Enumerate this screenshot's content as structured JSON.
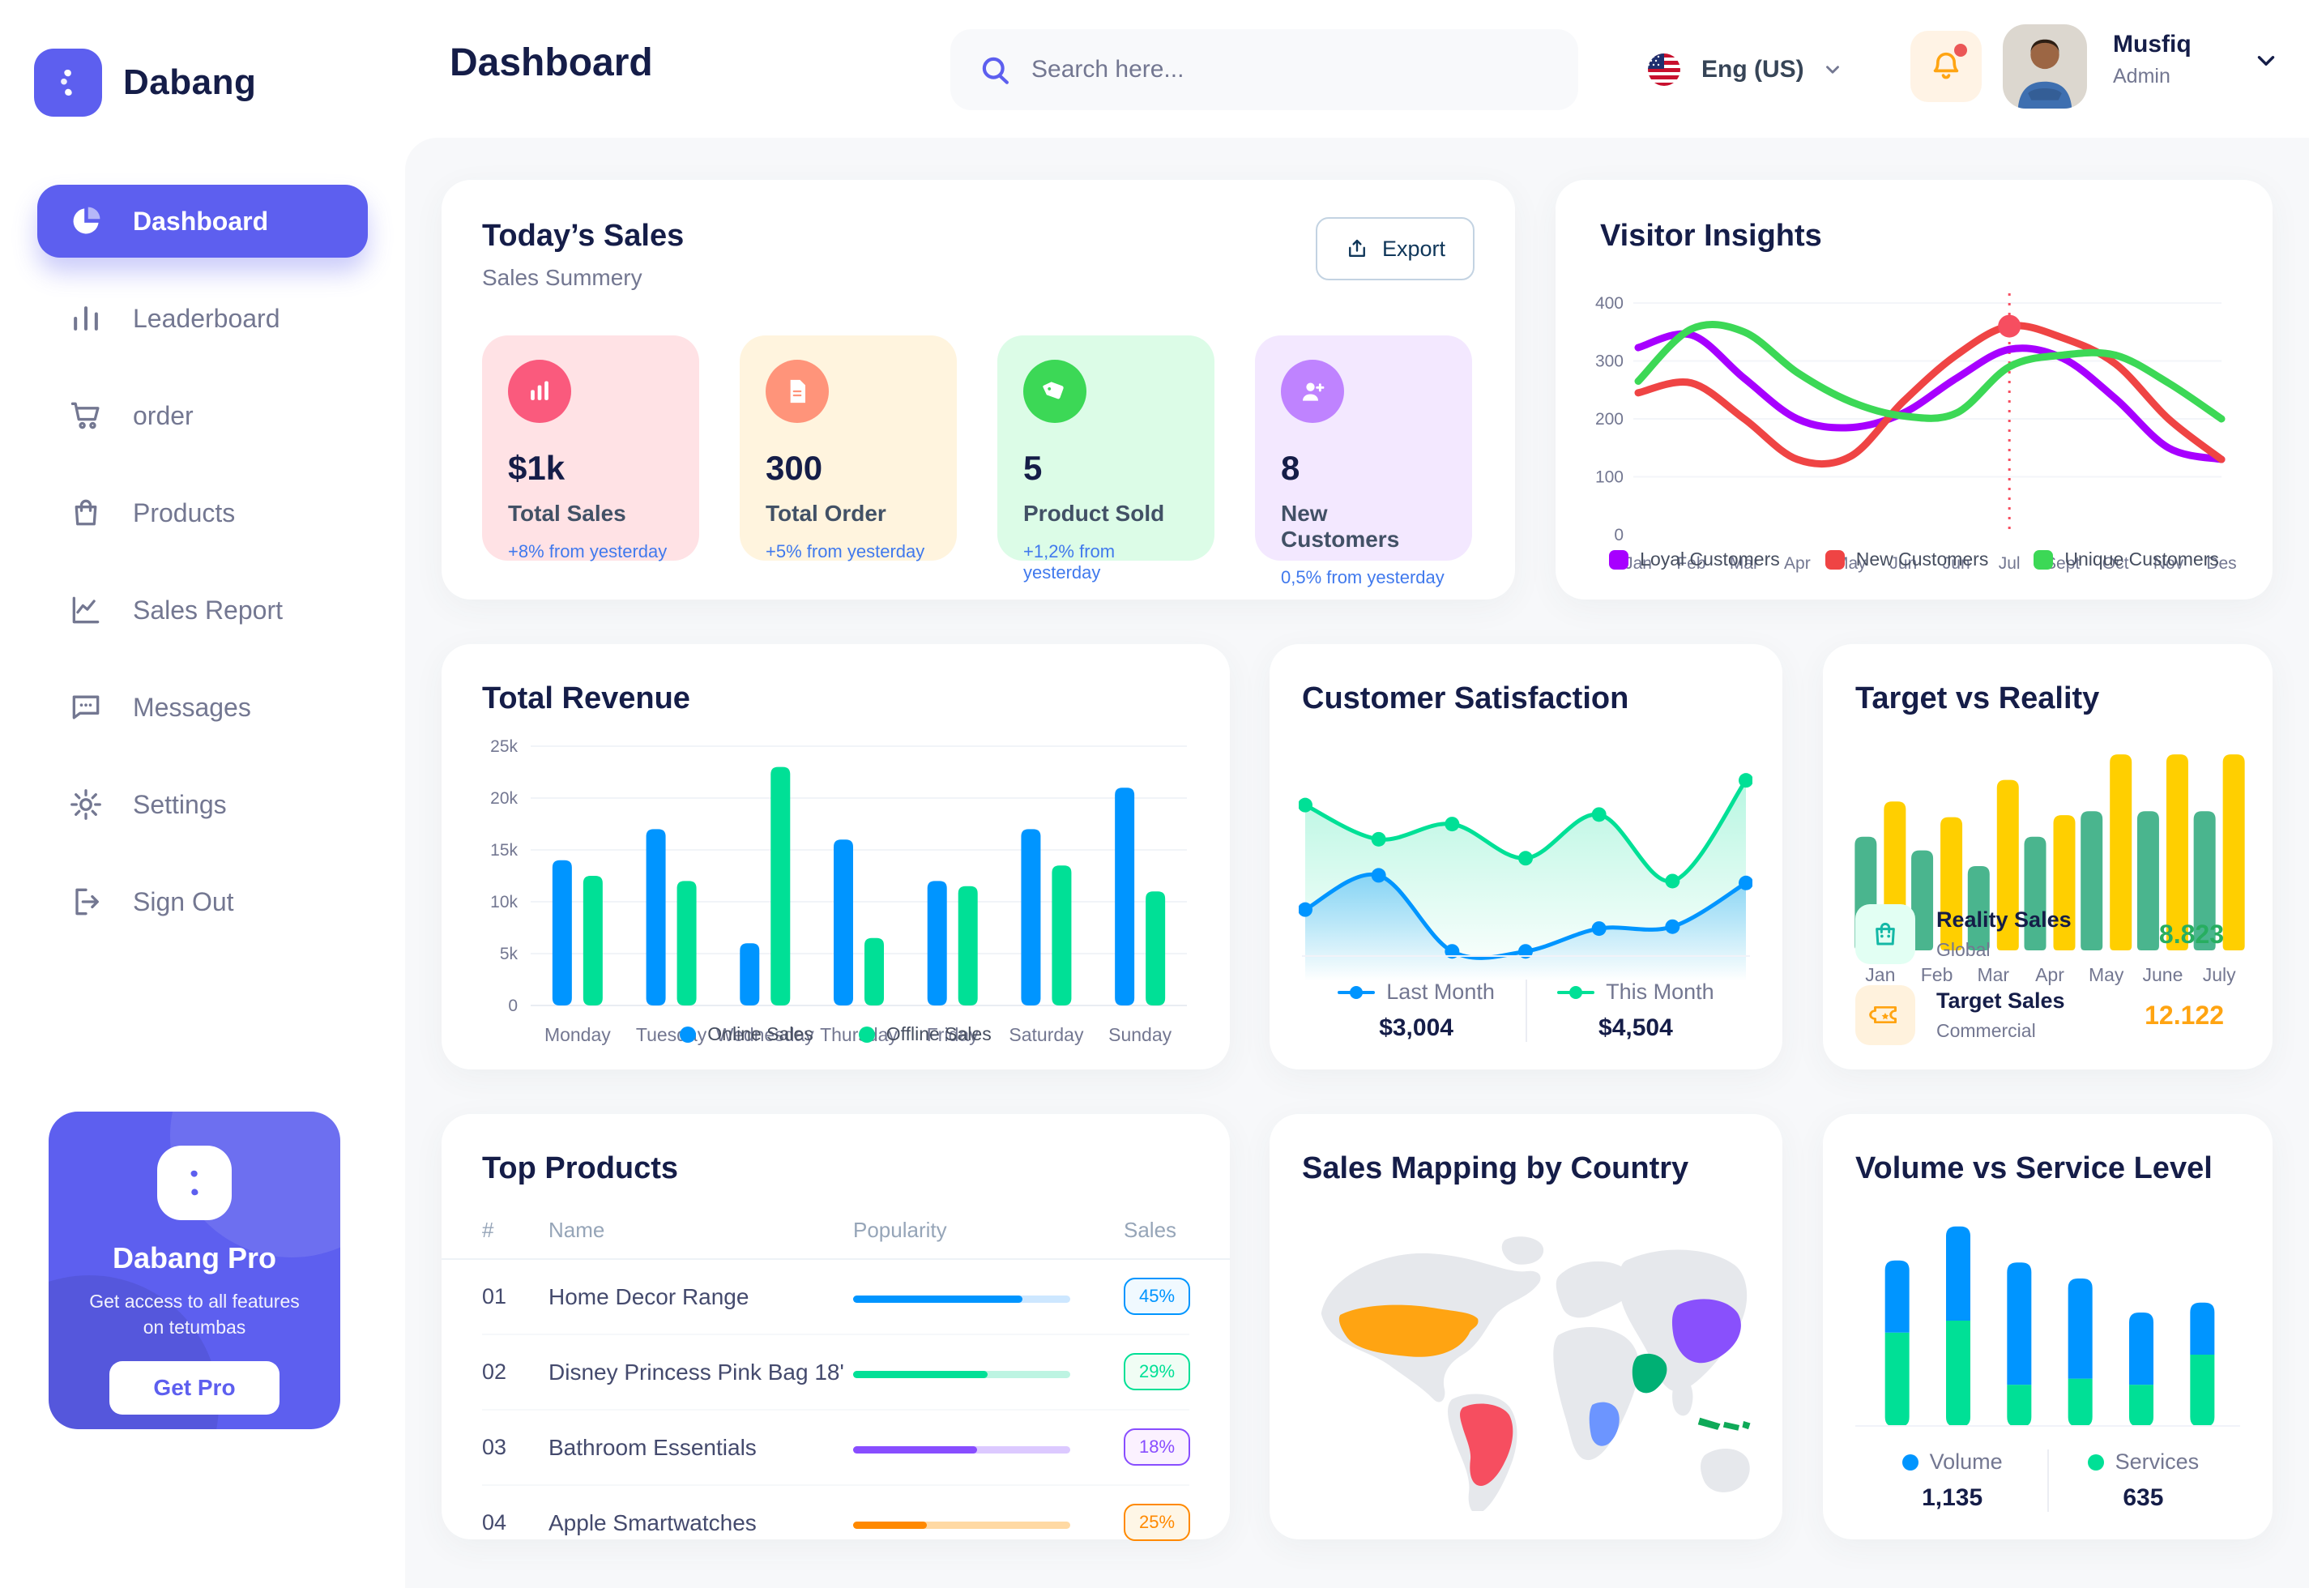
{
  "theme": {
    "primary": "#5D5FEF",
    "heading": "#151D48",
    "muted": "#737791",
    "content_bg": "#F7F8FA",
    "delta_blue": "#4079ED"
  },
  "app": {
    "brand": "Dabang"
  },
  "header": {
    "page_title": "Dashboard",
    "search_placeholder": "Search here...",
    "language": "Eng (US)",
    "user_name": "Musfiq",
    "user_role": "Admin"
  },
  "sidebar": {
    "items": [
      {
        "label": "Dashboard",
        "icon": "pie-chart",
        "active": true
      },
      {
        "label": "Leaderboard",
        "icon": "bar-chart",
        "active": false
      },
      {
        "label": "order",
        "icon": "cart",
        "active": false
      },
      {
        "label": "Products",
        "icon": "bag",
        "active": false
      },
      {
        "label": "Sales Report",
        "icon": "line-chart",
        "active": false
      },
      {
        "label": "Messages",
        "icon": "message",
        "active": false
      },
      {
        "label": "Settings",
        "icon": "gear",
        "active": false
      },
      {
        "label": "Sign Out",
        "icon": "sign-out",
        "active": false
      }
    ],
    "pro": {
      "title": "Dabang Pro",
      "subtitle": "Get access to all features on tetumbas",
      "cta": "Get Pro"
    }
  },
  "today_sales": {
    "title": "Today’s Sales",
    "subtitle": "Sales Summery",
    "export_label": "Export",
    "cards": [
      {
        "value": "$1k",
        "label": "Total Sales",
        "delta": "+8% from yesterday",
        "bg": "#FFE2E5",
        "icon_bg": "#FA5A7D",
        "icon": "stat-bars"
      },
      {
        "value": "300",
        "label": "Total Order",
        "delta": "+5% from yesterday",
        "bg": "#FFF4DE",
        "icon_bg": "#FF947A",
        "icon": "file"
      },
      {
        "value": "5",
        "label": "Product Sold",
        "delta": "+1,2% from yesterday",
        "bg": "#DCFCE7",
        "icon_bg": "#3CD856",
        "icon": "tag"
      },
      {
        "value": "8",
        "label": "New Customers",
        "delta": "0,5% from yesterday",
        "bg": "#F3E8FF",
        "icon_bg": "#BF83FF",
        "icon": "user-plus"
      }
    ]
  },
  "top_products": {
    "title": "Top Products",
    "columns": [
      "#",
      "Name",
      "Popularity",
      "Sales"
    ],
    "rows": [
      {
        "rank": "01",
        "name": "Home Decor Range",
        "popularity": 78,
        "sales": "45%",
        "color": "#0095FF",
        "track": "#CDE7FF",
        "badge_bg": "#F0F9FF"
      },
      {
        "rank": "02",
        "name": "Disney Princess Pink Bag 18'",
        "popularity": 62,
        "sales": "29%",
        "color": "#00E096",
        "track": "#BDF4E2",
        "badge_bg": "#F0FDF4"
      },
      {
        "rank": "03",
        "name": "Bathroom Essentials",
        "popularity": 57,
        "sales": "18%",
        "color": "#884DFF",
        "track": "#DCC9FF",
        "badge_bg": "#FBF1FF"
      },
      {
        "rank": "04",
        "name": "Apple Smartwatches",
        "popularity": 34,
        "sales": "25%",
        "color": "#FF8900",
        "track": "#FFD9A3",
        "badge_bg": "#FEF6E6"
      }
    ]
  },
  "map": {
    "title": "Sales Mapping by Country",
    "countries": [
      {
        "name": "United States",
        "color": "#FFA412"
      },
      {
        "name": "Brazil",
        "color": "#F64E60"
      },
      {
        "name": "Saudi Arabia",
        "color": "#00B074"
      },
      {
        "name": "DR Congo",
        "color": "#6C95FF"
      },
      {
        "name": "China",
        "color": "#8950FC"
      },
      {
        "name": "Indonesia",
        "color": "#0FA958"
      }
    ]
  },
  "chart_data": [
    {
      "id": "visitor-insights",
      "type": "line",
      "title": "Visitor Insights",
      "x": [
        "Jan",
        "Feb",
        "Mar",
        "Apr",
        "May",
        "Jun",
        "Jun",
        "Jul",
        "Sept",
        "Oct",
        "Nov",
        "Des"
      ],
      "ylim": [
        0,
        400
      ],
      "yticks": [
        0,
        100,
        200,
        300,
        400
      ],
      "grid": true,
      "legend_position": "bottom",
      "series": [
        {
          "name": "Loyal Customers",
          "color": "#A700FF",
          "values": [
            323,
            345,
            270,
            200,
            185,
            210,
            270,
            320,
            305,
            235,
            150,
            130
          ]
        },
        {
          "name": "New Customers",
          "color": "#EF4444",
          "values": [
            245,
            262,
            200,
            130,
            135,
            230,
            310,
            360,
            340,
            295,
            200,
            130
          ]
        },
        {
          "name": "Unique Customers",
          "color": "#3CD856",
          "values": [
            265,
            355,
            350,
            280,
            230,
            205,
            210,
            290,
            310,
            310,
            262,
            200
          ]
        }
      ],
      "highlight": {
        "x_index": 7,
        "x_label": "Jul",
        "series": "New Customers",
        "value": 360
      }
    },
    {
      "id": "total-revenue",
      "type": "bar",
      "title": "Total Revenue",
      "categories": [
        "Monday",
        "Tuesday",
        "Wednesday",
        "Thursday",
        "Friday",
        "Saturday",
        "Sunday"
      ],
      "ylim": [
        0,
        25000
      ],
      "yticks": [
        0,
        5000,
        10000,
        15000,
        20000,
        25000
      ],
      "ytick_labels": [
        "0",
        "5k",
        "10k",
        "15k",
        "20k",
        "25k"
      ],
      "grid": true,
      "legend_position": "bottom",
      "series": [
        {
          "name": "Online Sales",
          "color": "#0095FF",
          "values": [
            14000,
            17000,
            6000,
            16000,
            12000,
            17000,
            21000
          ]
        },
        {
          "name": "Offline Sales",
          "color": "#00E096",
          "values": [
            12500,
            12000,
            23000,
            6500,
            11500,
            13500,
            11000
          ]
        }
      ]
    },
    {
      "id": "customer-satisfaction",
      "type": "area",
      "title": "Customer Satisfaction",
      "ylim": [
        0,
        110
      ],
      "grid": false,
      "legend_position": "bottom",
      "series": [
        {
          "name": "Last Month",
          "total_label": "$3,004",
          "color": "#0095FF",
          "values": [
            30,
            48,
            8,
            8,
            20,
            21,
            44
          ]
        },
        {
          "name": "This Month",
          "total_label": "$4,504",
          "color": "#00E096",
          "values": [
            85,
            67,
            75,
            57,
            80,
            45,
            98
          ]
        }
      ]
    },
    {
      "id": "target-vs-reality",
      "type": "bar",
      "title": "Target vs Reality",
      "categories": [
        "Jan",
        "Feb",
        "Mar",
        "Apr",
        "May",
        "June",
        "July"
      ],
      "ylim": [
        0,
        110
      ],
      "grid": false,
      "legend_position": "bottom-list",
      "series": [
        {
          "name": "Reality Sales",
          "subtitle": "Global",
          "total_label": "8.823",
          "color": "#4AB58E",
          "value_color": "#27AE60",
          "icon_bg": "#E2FFF3",
          "icon": "bag-small",
          "values": [
            58,
            51,
            43,
            58,
            71,
            71,
            71
          ]
        },
        {
          "name": "Target Sales",
          "subtitle": "Commercial",
          "total_label": "12.122",
          "color": "#FFCF00",
          "value_color": "#FFA412",
          "icon_bg": "#FFF2DD",
          "icon": "ticket-small",
          "values": [
            76,
            68,
            87,
            69,
            100,
            100,
            100
          ]
        }
      ]
    },
    {
      "id": "volume-vs-service",
      "type": "stacked-bar",
      "title": "Volume vs Service Level",
      "categories": [
        "",
        "",
        "",
        "",
        "",
        ""
      ],
      "ylim": [
        0,
        110
      ],
      "grid": false,
      "legend_position": "bottom",
      "series": [
        {
          "name": "Volume",
          "total_label": "1,135",
          "color": "#0095FF",
          "values": [
            36,
            47,
            61,
            50,
            36,
            26
          ]
        },
        {
          "name": "Services",
          "total_label": "635",
          "color": "#00E096",
          "values": [
            47,
            53,
            21,
            24,
            21,
            36
          ]
        }
      ]
    }
  ]
}
